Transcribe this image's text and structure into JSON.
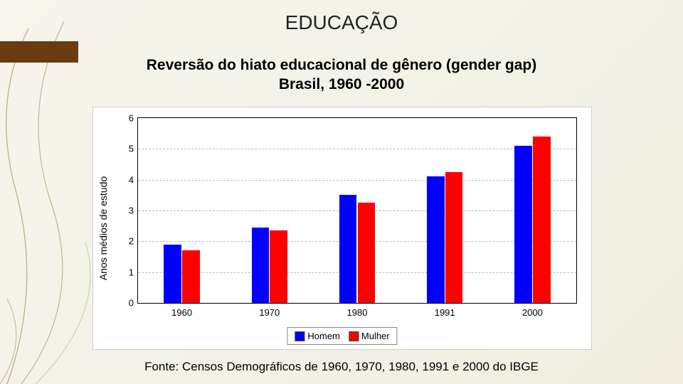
{
  "title": "EDUCAÇÃO",
  "subtitle_line1": "Reversão do hiato educacional de gênero (gender gap)",
  "subtitle_line2": "Brasil, 1960 -2000",
  "source": "Fonte: Censos Demográficos de 1960, 1970, 1980, 1991 e 2000 do IBGE",
  "chart": {
    "type": "bar",
    "ylabel": "Anos médios de estudo",
    "ylim": [
      0,
      6
    ],
    "ytick_step": 1,
    "yticks": [
      0,
      1,
      2,
      3,
      4,
      5,
      6
    ],
    "categories": [
      "1960",
      "1970",
      "1980",
      "1991",
      "2000"
    ],
    "series": [
      {
        "name": "Homem",
        "color": "#0000ff",
        "values": [
          1.9,
          2.45,
          3.5,
          4.1,
          5.1
        ]
      },
      {
        "name": "Mulher",
        "color": "#ff0000",
        "values": [
          1.7,
          2.35,
          3.25,
          4.25,
          5.4
        ]
      }
    ],
    "bar_width": 0.2,
    "bar_gap": 0.01,
    "grid_color": "#bbbbbb",
    "background_color": "#ffffff",
    "label_fontsize": 13,
    "legend_position": "bottom"
  },
  "decor": {
    "corner_color": "#6b3a0f",
    "vine_color": "#7a6a3a"
  }
}
